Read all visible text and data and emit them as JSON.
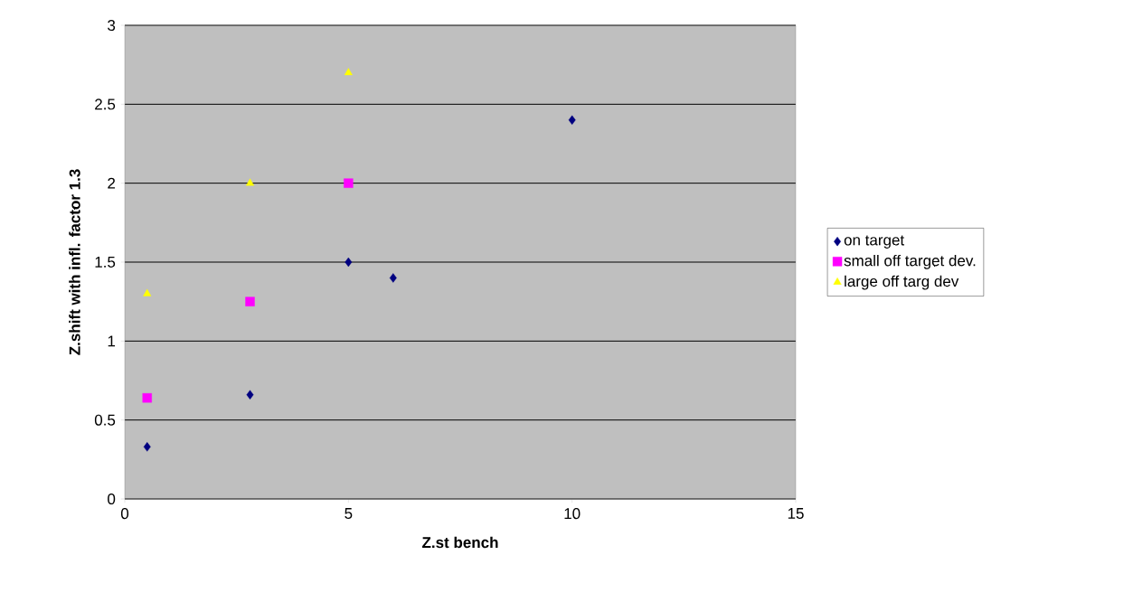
{
  "chart_data": {
    "type": "scatter",
    "xlabel": "Z.st bench",
    "ylabel": "Z.shift with infl. factor 1.3",
    "xlim": [
      0,
      15
    ],
    "xticks": [
      0,
      5,
      10,
      15
    ],
    "ylim": [
      0,
      3
    ],
    "yticks": [
      0,
      0.5,
      1,
      1.5,
      2,
      2.5,
      3
    ],
    "grid": "y",
    "legend": "right",
    "series": [
      {
        "name": "on target",
        "color": "#000080",
        "marker": "diamond",
        "x": [
          0.5,
          2.8,
          5,
          6,
          10
        ],
        "values": [
          0.33,
          0.66,
          1.5,
          1.4,
          2.4
        ]
      },
      {
        "name": "small off target dev.",
        "color": "#ff00ff",
        "marker": "square",
        "x": [
          0.5,
          2.8,
          5
        ],
        "values": [
          0.64,
          1.25,
          2.0
        ]
      },
      {
        "name": "large off targ dev",
        "color": "#ffff00",
        "marker": "triangle",
        "x": [
          0.5,
          2.8,
          5
        ],
        "values": [
          1.3,
          2.0,
          2.7
        ]
      }
    ]
  }
}
